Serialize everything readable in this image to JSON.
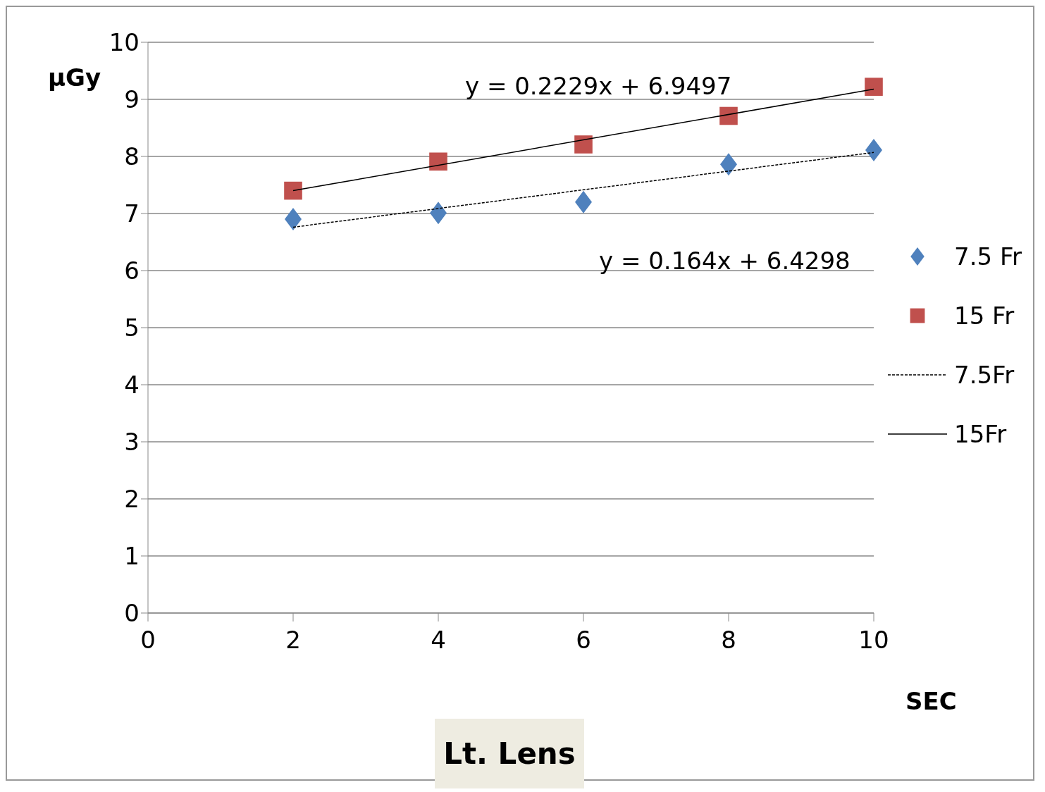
{
  "chart_data": {
    "type": "scatter",
    "xlabel": "SEC",
    "ylabel": "μGy",
    "xlim": [
      0,
      10
    ],
    "xticks": [
      0,
      2,
      4,
      6,
      8,
      10
    ],
    "ylim": [
      0,
      10
    ],
    "yticks": [
      0,
      1,
      2,
      3,
      4,
      5,
      6,
      7,
      8,
      9,
      10
    ],
    "grid": "y",
    "legend": "right",
    "series": [
      {
        "name": "7.5 Fr",
        "type": "scatter",
        "marker": "diamond",
        "color": "#4f81bd",
        "x": [
          2,
          4,
          6,
          8,
          10
        ],
        "values": [
          6.9,
          7.01,
          7.2,
          7.86,
          8.11
        ]
      },
      {
        "name": "15 Fr",
        "type": "scatter",
        "marker": "square",
        "color": "#c0504d",
        "x": [
          2,
          4,
          6,
          8,
          10
        ],
        "values": [
          7.4,
          7.91,
          8.21,
          8.71,
          9.22
        ]
      },
      {
        "name": "7.5Fr",
        "type": "line",
        "marker": "none",
        "line_style": "dotted",
        "color": "#000000",
        "x": [
          2,
          10
        ],
        "values": [
          6.76,
          8.07
        ]
      },
      {
        "name": "15Fr",
        "type": "line",
        "marker": "none",
        "line_style": "solid",
        "color": "#000000",
        "x": [
          2,
          10
        ],
        "values": [
          7.4,
          9.18
        ]
      }
    ],
    "annotations": [
      "y = 0.2229x + 6.9497",
      "y = 0.164x + 6.4298",
      "Lt. Lens"
    ]
  }
}
